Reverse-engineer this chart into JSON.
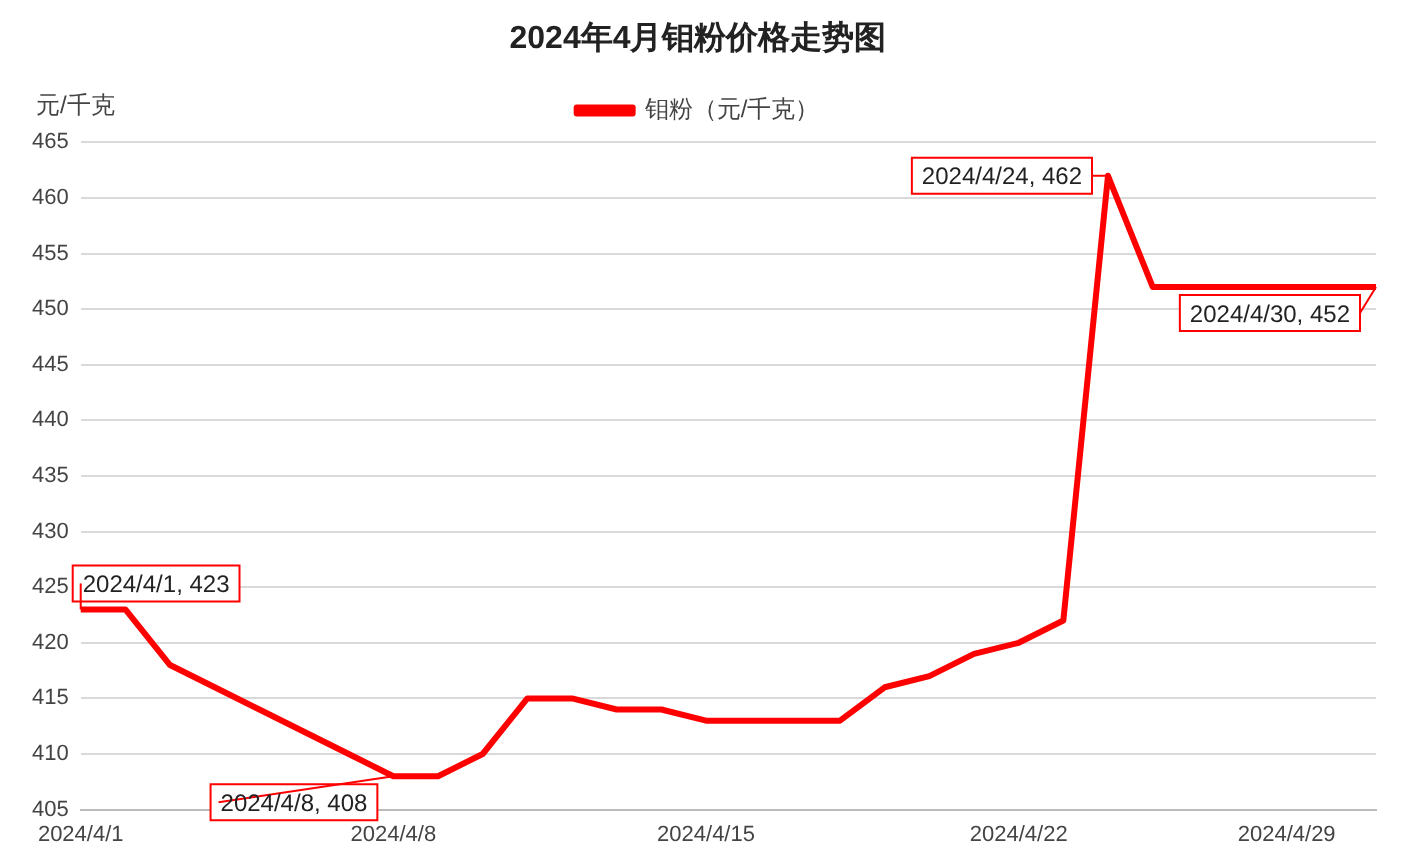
{
  "chart_data": {
    "type": "line",
    "title": "2024年4月钼粉价格走势图",
    "ylabel": "元/千克",
    "categories": [
      "2024/4/1",
      null,
      null,
      null,
      null,
      null,
      null,
      "2024/4/8",
      null,
      null,
      null,
      null,
      null,
      null,
      "2024/4/15",
      null,
      null,
      null,
      null,
      null,
      null,
      "2024/4/22",
      null,
      null,
      null,
      null,
      null,
      "2024/4/29",
      null,
      null
    ],
    "series": [
      {
        "name": "钼粉（元/千克）",
        "color": "#ff0000",
        "values": [
          423,
          423,
          418,
          416,
          414,
          412,
          410,
          408,
          408,
          410,
          415,
          415,
          414,
          414,
          413,
          413,
          413,
          413,
          416,
          417,
          419,
          420,
          422,
          462,
          452,
          452,
          452,
          452,
          452,
          452
        ],
        "value_labels": [
          "2024/4/1, 423",
          null,
          null,
          null,
          null,
          null,
          null,
          "2024/4/8, 408",
          null,
          null,
          null,
          null,
          null,
          null,
          null,
          null,
          null,
          null,
          null,
          null,
          null,
          null,
          null,
          "2024/4/24, 462",
          null,
          null,
          null,
          null,
          null,
          "2024/4/30, 452"
        ]
      }
    ],
    "ylim": [
      405,
      465
    ],
    "yticks": [
      405,
      410,
      415,
      420,
      425,
      430,
      435,
      440,
      445,
      450,
      455,
      460,
      465
    ],
    "grid": "y",
    "legend": "top",
    "marker": "none",
    "line_style": "solid"
  }
}
